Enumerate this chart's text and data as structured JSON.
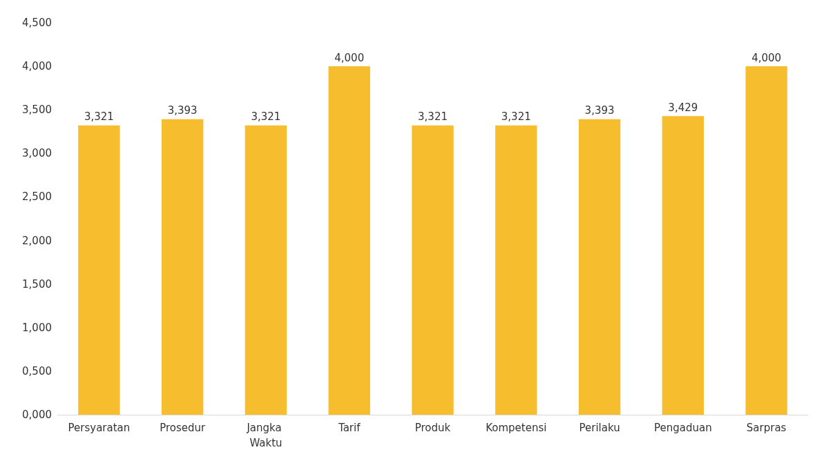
{
  "chart_data": {
    "type": "bar",
    "categories": [
      "Persyaratan",
      "Prosedur",
      "Jangka Waktu",
      "Tarif",
      "Produk",
      "Kompetensi",
      "Perilaku",
      "Pengaduan",
      "Sarpras"
    ],
    "values": [
      3.321,
      3.393,
      3.321,
      4.0,
      3.321,
      3.321,
      3.393,
      3.429,
      4.0
    ],
    "value_labels": [
      "3,321",
      "3,393",
      "3,321",
      "4,000",
      "3,321",
      "3,321",
      "3,393",
      "3,429",
      "4,000"
    ],
    "color": "#f6bd2e",
    "ylim": [
      0,
      4.5
    ],
    "yticks": [
      {
        "value": 0,
        "label": "0,000"
      },
      {
        "value": 0.5,
        "label": "0,500"
      },
      {
        "value": 1,
        "label": "1,000"
      },
      {
        "value": 1.5,
        "label": "1,500"
      },
      {
        "value": 2,
        "label": "2,000"
      },
      {
        "value": 2.5,
        "label": "2,500"
      },
      {
        "value": 3,
        "label": "3,000"
      },
      {
        "value": 3.5,
        "label": "3,500"
      },
      {
        "value": 4,
        "label": "4,000"
      },
      {
        "value": 4.5,
        "label": "4,500"
      }
    ],
    "grid": false
  }
}
